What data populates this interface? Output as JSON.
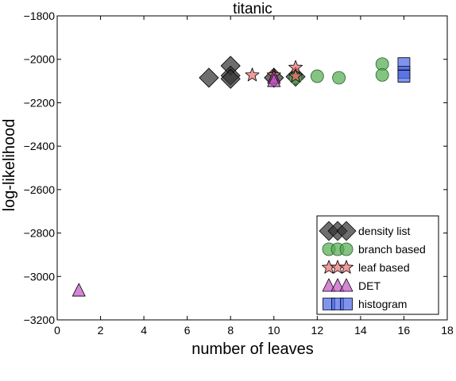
{
  "chart_data": {
    "type": "scatter",
    "title": "titanic",
    "xlabel": "number of leaves",
    "ylabel": "log-likelihood",
    "xlim": [
      0,
      18
    ],
    "ylim": [
      -3200,
      -1800
    ],
    "xticks": [
      "0",
      "2",
      "4",
      "6",
      "8",
      "10",
      "12",
      "14",
      "16",
      "18"
    ],
    "yticks": [
      "−1800",
      "−2000",
      "−2200",
      "−2400",
      "−2600",
      "−2800",
      "−3000",
      "−3200"
    ],
    "xtick_values": [
      0,
      2,
      4,
      6,
      8,
      10,
      12,
      14,
      16,
      18
    ],
    "ytick_values": [
      -1800,
      -2000,
      -2200,
      -2400,
      -2600,
      -2800,
      -3000,
      -3200
    ],
    "grid": false,
    "legend_position": "bottom-right",
    "series": [
      {
        "name": "density list",
        "marker": "diamond",
        "color": "#303030",
        "x": [
          7,
          8,
          8,
          8,
          10,
          11
        ],
        "y": [
          -2085,
          -2030,
          -2075,
          -2090,
          -2085,
          -2080
        ]
      },
      {
        "name": "branch based",
        "marker": "circle",
        "color": "#4fab4f",
        "x": [
          11,
          12,
          13,
          15,
          15
        ],
        "y": [
          -2085,
          -2078,
          -2085,
          -2022,
          -2072
        ]
      },
      {
        "name": "leaf based",
        "marker": "star",
        "color": "#ee6f6f",
        "x": [
          9,
          10,
          11,
          11
        ],
        "y": [
          -2073,
          -2073,
          -2038,
          -2078
        ]
      },
      {
        "name": "DET",
        "marker": "triangle",
        "color": "#c353c3",
        "x": [
          1,
          10,
          10
        ],
        "y": [
          -3065,
          -2085,
          -2100
        ]
      },
      {
        "name": "histogram",
        "marker": "square",
        "color": "#4a66e6",
        "x": [
          16,
          16,
          16
        ],
        "y": [
          -2020,
          -2060,
          -2078
        ]
      }
    ]
  }
}
